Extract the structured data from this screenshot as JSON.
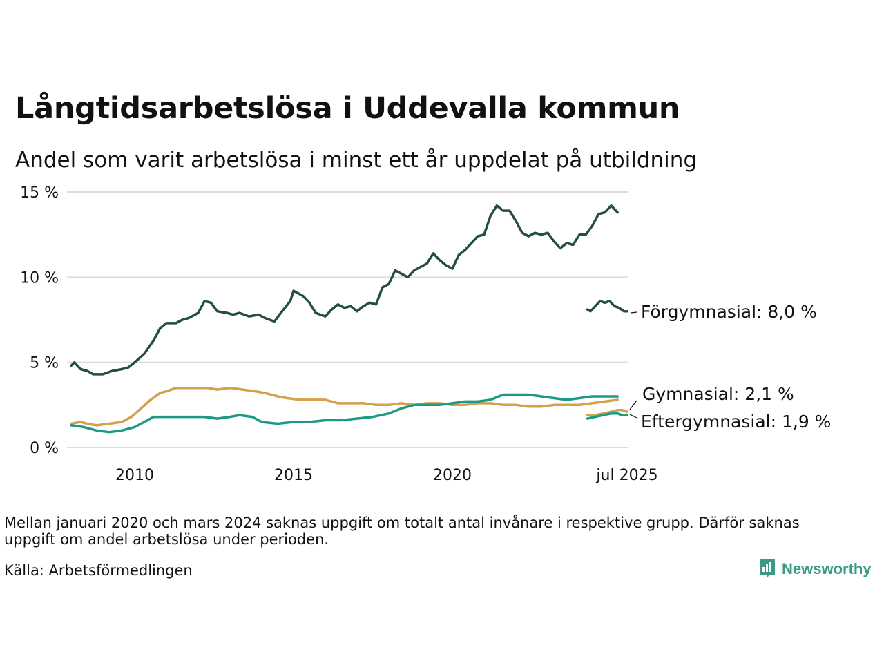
{
  "title": "Långtidsarbetslösa i Uddevalla kommun",
  "subtitle": "Andel som varit arbetslösa i minst ett år uppdelat på utbildning",
  "note": "Mellan januari 2020 och mars 2024 saknas uppgift om totalt antal invånare i respektive grupp. Därför saknas uppgift om andel arbetslösa under perioden.",
  "source": "Källa: Arbetsförmedlingen",
  "logo_text": "Newsworthy",
  "colors": {
    "forgymnasial": "#234d45",
    "gymnasial": "#d4a04a",
    "eftergymnasial": "#1e9985",
    "grid": "#dddddd",
    "text": "#111111"
  },
  "chart_data": {
    "type": "line",
    "ylim": [
      0,
      15
    ],
    "y_ticks": [
      {
        "value": 0,
        "label": "0 %"
      },
      {
        "value": 5,
        "label": "5 %"
      },
      {
        "value": 10,
        "label": "10 %"
      },
      {
        "value": 15,
        "label": "15 %"
      }
    ],
    "x_ticks": [
      {
        "value": 2010,
        "label": "2010"
      },
      {
        "value": 2015,
        "label": "2015"
      },
      {
        "value": 2020,
        "label": "2020"
      },
      {
        "value": 2025.5,
        "label": "jul 2025"
      }
    ],
    "grid": "horizontal",
    "series": [
      {
        "key": "forgymnasial",
        "label": "Förgymnasial: 8,0 %",
        "segments": [
          [
            [
              2008.0,
              4.8
            ],
            [
              2008.1,
              5.0
            ],
            [
              2008.3,
              4.6
            ],
            [
              2008.5,
              4.5
            ],
            [
              2008.7,
              4.3
            ],
            [
              2009.0,
              4.3
            ],
            [
              2009.3,
              4.5
            ],
            [
              2009.6,
              4.6
            ],
            [
              2009.8,
              4.7
            ],
            [
              2010.0,
              5.0
            ],
            [
              2010.3,
              5.5
            ],
            [
              2010.6,
              6.3
            ],
            [
              2010.8,
              7.0
            ],
            [
              2011.0,
              7.3
            ],
            [
              2011.3,
              7.3
            ],
            [
              2011.5,
              7.5
            ],
            [
              2011.7,
              7.6
            ],
            [
              2012.0,
              7.9
            ],
            [
              2012.2,
              8.6
            ],
            [
              2012.4,
              8.5
            ],
            [
              2012.6,
              8.0
            ],
            [
              2012.9,
              7.9
            ],
            [
              2013.1,
              7.8
            ],
            [
              2013.3,
              7.9
            ],
            [
              2013.6,
              7.7
            ],
            [
              2013.9,
              7.8
            ],
            [
              2014.1,
              7.6
            ],
            [
              2014.4,
              7.4
            ],
            [
              2014.6,
              7.9
            ],
            [
              2014.9,
              8.6
            ],
            [
              2015.0,
              9.2
            ],
            [
              2015.3,
              8.9
            ],
            [
              2015.5,
              8.5
            ],
            [
              2015.7,
              7.9
            ],
            [
              2016.0,
              7.7
            ],
            [
              2016.2,
              8.1
            ],
            [
              2016.4,
              8.4
            ],
            [
              2016.6,
              8.2
            ],
            [
              2016.8,
              8.3
            ],
            [
              2017.0,
              8.0
            ],
            [
              2017.2,
              8.3
            ],
            [
              2017.4,
              8.5
            ],
            [
              2017.6,
              8.4
            ],
            [
              2017.8,
              9.4
            ],
            [
              2018.0,
              9.6
            ],
            [
              2018.2,
              10.4
            ],
            [
              2018.4,
              10.2
            ],
            [
              2018.6,
              10.0
            ],
            [
              2018.8,
              10.4
            ],
            [
              2019.0,
              10.6
            ],
            [
              2019.2,
              10.8
            ],
            [
              2019.4,
              11.4
            ],
            [
              2019.6,
              11.0
            ],
            [
              2019.8,
              10.7
            ],
            [
              2020.0,
              10.5
            ],
            [
              2020.2,
              11.3
            ],
            [
              2020.4,
              11.6
            ],
            [
              2020.6,
              12.0
            ],
            [
              2020.8,
              12.4
            ],
            [
              2021.0,
              12.5
            ],
            [
              2021.2,
              13.6
            ],
            [
              2021.4,
              14.2
            ],
            [
              2021.6,
              13.9
            ],
            [
              2021.8,
              13.9
            ],
            [
              2022.0,
              13.3
            ],
            [
              2022.2,
              12.6
            ],
            [
              2022.4,
              12.4
            ],
            [
              2022.6,
              12.6
            ],
            [
              2022.8,
              12.5
            ],
            [
              2023.0,
              12.6
            ],
            [
              2023.2,
              12.1
            ],
            [
              2023.4,
              11.7
            ],
            [
              2023.6,
              12.0
            ],
            [
              2023.8,
              11.9
            ],
            [
              2024.0,
              12.5
            ],
            [
              2024.2,
              12.5
            ],
            [
              2024.4,
              13.0
            ],
            [
              2024.6,
              13.7
            ],
            [
              2024.8,
              13.8
            ],
            [
              2025.0,
              14.2
            ],
            [
              2025.2,
              13.8
            ]
          ],
          [
            [
              2024.25,
              8.1
            ],
            [
              2024.35,
              8.0
            ],
            [
              2024.5,
              8.3
            ],
            [
              2024.65,
              8.6
            ],
            [
              2024.8,
              8.5
            ],
            [
              2024.95,
              8.6
            ],
            [
              2025.1,
              8.3
            ],
            [
              2025.25,
              8.2
            ],
            [
              2025.4,
              8.0
            ],
            [
              2025.5,
              8.0
            ]
          ]
        ]
      },
      {
        "key": "gymnasial",
        "label": "Gymnasial: 2,1 %",
        "segments": [
          [
            [
              2008.0,
              1.4
            ],
            [
              2008.3,
              1.5
            ],
            [
              2008.5,
              1.4
            ],
            [
              2008.8,
              1.3
            ],
            [
              2009.2,
              1.4
            ],
            [
              2009.6,
              1.5
            ],
            [
              2009.9,
              1.8
            ],
            [
              2010.2,
              2.3
            ],
            [
              2010.5,
              2.8
            ],
            [
              2010.8,
              3.2
            ],
            [
              2011.0,
              3.3
            ],
            [
              2011.3,
              3.5
            ],
            [
              2011.6,
              3.5
            ],
            [
              2012.0,
              3.5
            ],
            [
              2012.3,
              3.5
            ],
            [
              2012.6,
              3.4
            ],
            [
              2013.0,
              3.5
            ],
            [
              2013.4,
              3.4
            ],
            [
              2013.8,
              3.3
            ],
            [
              2014.1,
              3.2
            ],
            [
              2014.5,
              3.0
            ],
            [
              2014.8,
              2.9
            ],
            [
              2015.2,
              2.8
            ],
            [
              2015.6,
              2.8
            ],
            [
              2016.0,
              2.8
            ],
            [
              2016.4,
              2.6
            ],
            [
              2016.8,
              2.6
            ],
            [
              2017.2,
              2.6
            ],
            [
              2017.6,
              2.5
            ],
            [
              2018.0,
              2.5
            ],
            [
              2018.4,
              2.6
            ],
            [
              2018.8,
              2.5
            ],
            [
              2019.2,
              2.6
            ],
            [
              2019.6,
              2.6
            ],
            [
              2020.0,
              2.5
            ],
            [
              2020.4,
              2.5
            ],
            [
              2020.8,
              2.6
            ],
            [
              2021.2,
              2.6
            ],
            [
              2021.6,
              2.5
            ],
            [
              2022.0,
              2.5
            ],
            [
              2022.4,
              2.4
            ],
            [
              2022.8,
              2.4
            ],
            [
              2023.2,
              2.5
            ],
            [
              2023.6,
              2.5
            ],
            [
              2024.0,
              2.5
            ],
            [
              2024.4,
              2.6
            ],
            [
              2024.8,
              2.7
            ],
            [
              2025.2,
              2.8
            ]
          ],
          [
            [
              2024.25,
              1.9
            ],
            [
              2024.5,
              1.9
            ],
            [
              2024.75,
              2.0
            ],
            [
              2025.0,
              2.1
            ],
            [
              2025.2,
              2.2
            ],
            [
              2025.35,
              2.2
            ],
            [
              2025.5,
              2.1
            ]
          ]
        ]
      },
      {
        "key": "eftergymnasial",
        "label": "Eftergymnasial: 1,9 %",
        "segments": [
          [
            [
              2008.0,
              1.3
            ],
            [
              2008.4,
              1.2
            ],
            [
              2008.8,
              1.0
            ],
            [
              2009.2,
              0.9
            ],
            [
              2009.6,
              1.0
            ],
            [
              2010.0,
              1.2
            ],
            [
              2010.3,
              1.5
            ],
            [
              2010.6,
              1.8
            ],
            [
              2011.0,
              1.8
            ],
            [
              2011.4,
              1.8
            ],
            [
              2011.8,
              1.8
            ],
            [
              2012.2,
              1.8
            ],
            [
              2012.6,
              1.7
            ],
            [
              2013.0,
              1.8
            ],
            [
              2013.3,
              1.9
            ],
            [
              2013.7,
              1.8
            ],
            [
              2014.0,
              1.5
            ],
            [
              2014.5,
              1.4
            ],
            [
              2015.0,
              1.5
            ],
            [
              2015.5,
              1.5
            ],
            [
              2016.0,
              1.6
            ],
            [
              2016.5,
              1.6
            ],
            [
              2017.0,
              1.7
            ],
            [
              2017.5,
              1.8
            ],
            [
              2018.0,
              2.0
            ],
            [
              2018.4,
              2.3
            ],
            [
              2018.8,
              2.5
            ],
            [
              2019.2,
              2.5
            ],
            [
              2019.6,
              2.5
            ],
            [
              2020.0,
              2.6
            ],
            [
              2020.4,
              2.7
            ],
            [
              2020.8,
              2.7
            ],
            [
              2021.2,
              2.8
            ],
            [
              2021.6,
              3.1
            ],
            [
              2022.0,
              3.1
            ],
            [
              2022.4,
              3.1
            ],
            [
              2022.8,
              3.0
            ],
            [
              2023.2,
              2.9
            ],
            [
              2023.6,
              2.8
            ],
            [
              2024.0,
              2.9
            ],
            [
              2024.4,
              3.0
            ],
            [
              2024.8,
              3.0
            ],
            [
              2025.2,
              3.0
            ]
          ],
          [
            [
              2024.25,
              1.7
            ],
            [
              2024.5,
              1.8
            ],
            [
              2024.75,
              1.9
            ],
            [
              2025.0,
              2.0
            ],
            [
              2025.2,
              2.0
            ],
            [
              2025.35,
              1.9
            ],
            [
              2025.5,
              1.9
            ]
          ]
        ]
      }
    ]
  }
}
